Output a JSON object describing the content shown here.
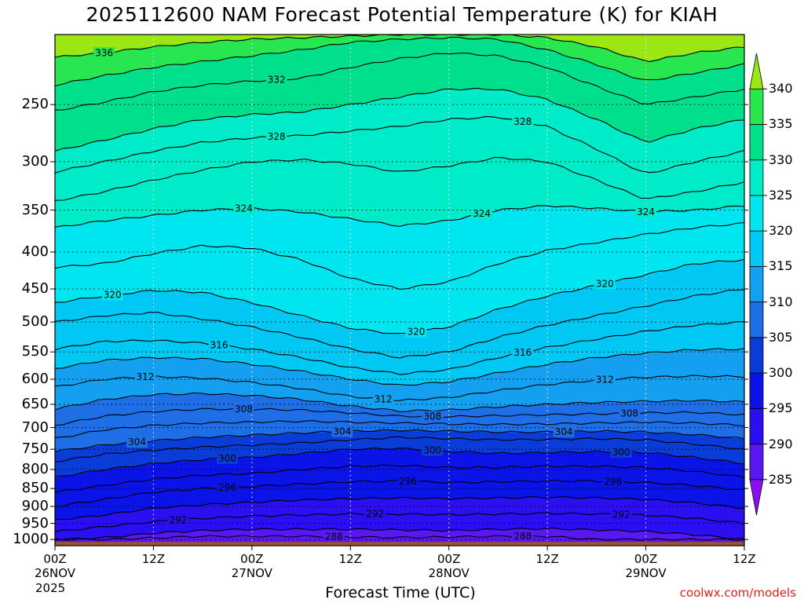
{
  "chart_data": {
    "type": "heatmap",
    "title": "2025112600 NAM Forecast Potential Temperature (K) for KIAH",
    "xlabel": "Forecast Time (UTC)",
    "ylabel": "",
    "y_axis": {
      "scale": "log",
      "inverted": true,
      "range": [
        1020,
        200
      ],
      "ticks": [
        250,
        300,
        350,
        400,
        450,
        500,
        550,
        600,
        650,
        700,
        750,
        800,
        850,
        900,
        950,
        1000
      ],
      "tick_labels": [
        "250",
        "300",
        "350",
        "400",
        "450",
        "500",
        "550",
        "600",
        "650",
        "700",
        "750",
        "800",
        "850",
        "900",
        "950",
        "1000"
      ]
    },
    "x_axis": {
      "range_hours": [
        0,
        84
      ],
      "ticks": [
        {
          "hour": 0,
          "label": "00Z",
          "date": "26NOV",
          "year": "2025"
        },
        {
          "hour": 12,
          "label": "12Z",
          "date": "",
          "year": ""
        },
        {
          "hour": 24,
          "label": "00Z",
          "date": "27NOV",
          "year": ""
        },
        {
          "hour": 36,
          "label": "12Z",
          "date": "",
          "year": ""
        },
        {
          "hour": 48,
          "label": "00Z",
          "date": "28NOV",
          "year": ""
        },
        {
          "hour": 60,
          "label": "12Z",
          "date": "",
          "year": ""
        },
        {
          "hour": 72,
          "label": "00Z",
          "date": "29NOV",
          "year": ""
        },
        {
          "hour": 84,
          "label": "12Z",
          "date": "",
          "year": ""
        }
      ]
    },
    "grid": true,
    "colorbar": {
      "levels": [
        285,
        290,
        295,
        300,
        305,
        310,
        315,
        320,
        325,
        330,
        335,
        340
      ],
      "labels": [
        "285",
        "290",
        "295",
        "300",
        "305",
        "310",
        "315",
        "320",
        "325",
        "330",
        "335",
        "340"
      ],
      "colors": [
        "#8c0ff0",
        "#5a18f0",
        "#2a0ff0",
        "#0a14e6",
        "#0a3cd8",
        "#1e6ee6",
        "#14a0f0",
        "#00c8f5",
        "#00e6f0",
        "#00ebc8",
        "#00e08c",
        "#28e650",
        "#9ce614"
      ]
    },
    "isentropes": [
      {
        "theta": 288,
        "p": [
          1000,
          1000,
          995,
          990,
          990,
          990,
          992,
          994,
          992,
          990,
          990,
          1000,
          1000,
          1000,
          1000
        ]
      },
      {
        "theta": 290,
        "p": [
          1000,
          995,
          980,
          972,
          968,
          968,
          968,
          970,
          972,
          968,
          966,
          970,
          975,
          985,
          1000
        ]
      },
      {
        "theta": 292,
        "p": [
          975,
          960,
          945,
          935,
          928,
          925,
          922,
          922,
          924,
          922,
          920,
          922,
          925,
          935,
          950
        ]
      },
      {
        "theta": 294,
        "p": [
          940,
          925,
          905,
          895,
          888,
          882,
          878,
          876,
          878,
          876,
          874,
          876,
          880,
          890,
          905
        ]
      },
      {
        "theta": 296,
        "p": [
          900,
          880,
          860,
          850,
          845,
          838,
          832,
          830,
          834,
          832,
          830,
          830,
          834,
          842,
          855
        ]
      },
      {
        "theta": 298,
        "p": [
          860,
          842,
          825,
          815,
          810,
          800,
          792,
          790,
          795,
          795,
          792,
          792,
          795,
          805,
          820
        ]
      },
      {
        "theta": 300,
        "p": [
          820,
          800,
          785,
          775,
          770,
          760,
          750,
          748,
          755,
          760,
          758,
          756,
          758,
          770,
          785
        ]
      },
      {
        "theta": 302,
        "p": [
          780,
          762,
          752,
          745,
          740,
          735,
          728,
          722,
          725,
          728,
          727,
          725,
          728,
          738,
          750
        ]
      },
      {
        "theta": 304,
        "p": [
          755,
          740,
          730,
          722,
          717,
          712,
          708,
          706,
          708,
          710,
          710,
          708,
          710,
          716,
          725
        ]
      },
      {
        "theta": 306,
        "p": [
          725,
          705,
          695,
          690,
          688,
          686,
          688,
          690,
          692,
          693,
          692,
          690,
          688,
          690,
          695
        ]
      },
      {
        "theta": 308,
        "p": [
          695,
          675,
          665,
          660,
          660,
          662,
          668,
          675,
          676,
          674,
          672,
          670,
          668,
          667,
          672
        ]
      },
      {
        "theta": 310,
        "p": [
          660,
          640,
          630,
          628,
          632,
          640,
          654,
          664,
          662,
          655,
          650,
          646,
          644,
          642,
          645
        ]
      },
      {
        "theta": 312,
        "p": [
          615,
          600,
          595,
          598,
          606,
          618,
          634,
          642,
          636,
          622,
          610,
          602,
          596,
          594,
          595
        ]
      },
      {
        "theta": 314,
        "p": [
          580,
          565,
          560,
          562,
          572,
          585,
          600,
          612,
          605,
          588,
          572,
          560,
          552,
          546,
          545
        ]
      },
      {
        "theta": 316,
        "p": [
          545,
          532,
          530,
          535,
          545,
          560,
          578,
          590,
          582,
          560,
          542,
          528,
          515,
          505,
          500
        ]
      },
      {
        "theta": 318,
        "p": [
          500,
          490,
          485,
          495,
          508,
          525,
          545,
          560,
          550,
          525,
          505,
          490,
          475,
          460,
          450
        ]
      },
      {
        "theta": 320,
        "p": [
          470,
          460,
          452,
          455,
          470,
          490,
          510,
          520,
          508,
          480,
          460,
          445,
          430,
          415,
          410
        ]
      },
      {
        "theta": 322,
        "p": [
          420,
          415,
          402,
          392,
          395,
          410,
          435,
          450,
          440,
          415,
          398,
          388,
          378,
          370,
          365
        ]
      },
      {
        "theta": 324,
        "p": [
          370,
          362,
          356,
          350,
          348,
          352,
          360,
          368,
          362,
          350,
          345,
          348,
          352,
          350,
          345
        ]
      },
      {
        "theta": 326,
        "p": [
          340,
          330,
          318,
          308,
          300,
          298,
          302,
          310,
          304,
          296,
          300,
          318,
          338,
          330,
          320
        ]
      },
      {
        "theta": 328,
        "p": [
          310,
          300,
          290,
          282,
          278,
          276,
          272,
          268,
          262,
          260,
          268,
          288,
          312,
          300,
          290
        ]
      },
      {
        "theta": 330,
        "p": [
          290,
          280,
          270,
          262,
          258,
          256,
          250,
          244,
          238,
          238,
          246,
          262,
          282,
          270,
          262
        ]
      },
      {
        "theta": 332,
        "p": [
          255,
          248,
          240,
          235,
          232,
          230,
          222,
          216,
          212,
          214,
          222,
          236,
          250,
          244,
          238
        ]
      },
      {
        "theta": 334,
        "p": [
          235,
          228,
          222,
          218,
          214,
          210,
          205,
          203,
          202,
          203,
          210,
          220,
          232,
          226,
          220
        ]
      },
      {
        "theta": 336,
        "p": [
          215,
          212,
          208,
          205,
          203,
          202,
          201,
          200,
          200,
          200,
          202,
          208,
          218,
          212,
          208
        ]
      }
    ],
    "contour_labels": [
      {
        "theta": 336,
        "hour": 6,
        "label": "336"
      },
      {
        "theta": 332,
        "hour": 27,
        "label": "332"
      },
      {
        "theta": 328,
        "hour": 27,
        "label": "328"
      },
      {
        "theta": 328,
        "hour": 57,
        "label": "328"
      },
      {
        "theta": 324,
        "hour": 23,
        "label": "324"
      },
      {
        "theta": 324,
        "hour": 52,
        "label": "324"
      },
      {
        "theta": 324,
        "hour": 72,
        "label": "324"
      },
      {
        "theta": 320,
        "hour": 7,
        "label": "320"
      },
      {
        "theta": 320,
        "hour": 44,
        "label": "320"
      },
      {
        "theta": 320,
        "hour": 67,
        "label": "320"
      },
      {
        "theta": 316,
        "hour": 20,
        "label": "316"
      },
      {
        "theta": 316,
        "hour": 57,
        "label": "316"
      },
      {
        "theta": 312,
        "hour": 11,
        "label": "312"
      },
      {
        "theta": 312,
        "hour": 40,
        "label": "312"
      },
      {
        "theta": 312,
        "hour": 67,
        "label": "312"
      },
      {
        "theta": 308,
        "hour": 23,
        "label": "308"
      },
      {
        "theta": 308,
        "hour": 46,
        "label": "308"
      },
      {
        "theta": 308,
        "hour": 70,
        "label": "308"
      },
      {
        "theta": 304,
        "hour": 10,
        "label": "304"
      },
      {
        "theta": 304,
        "hour": 35,
        "label": "304"
      },
      {
        "theta": 304,
        "hour": 62,
        "label": "304"
      },
      {
        "theta": 300,
        "hour": 21,
        "label": "300"
      },
      {
        "theta": 300,
        "hour": 46,
        "label": "300"
      },
      {
        "theta": 300,
        "hour": 69,
        "label": "300"
      },
      {
        "theta": 296,
        "hour": 21,
        "label": "296"
      },
      {
        "theta": 296,
        "hour": 43,
        "label": "296"
      },
      {
        "theta": 296,
        "hour": 68,
        "label": "296"
      },
      {
        "theta": 292,
        "hour": 15,
        "label": "292"
      },
      {
        "theta": 292,
        "hour": 39,
        "label": "292"
      },
      {
        "theta": 292,
        "hour": 69,
        "label": "292"
      },
      {
        "theta": 288,
        "hour": 34,
        "label": "288"
      },
      {
        "theta": 288,
        "hour": 57,
        "label": "288"
      }
    ],
    "surface_pressure": 1020
  },
  "credit": "coolwx.com/models"
}
